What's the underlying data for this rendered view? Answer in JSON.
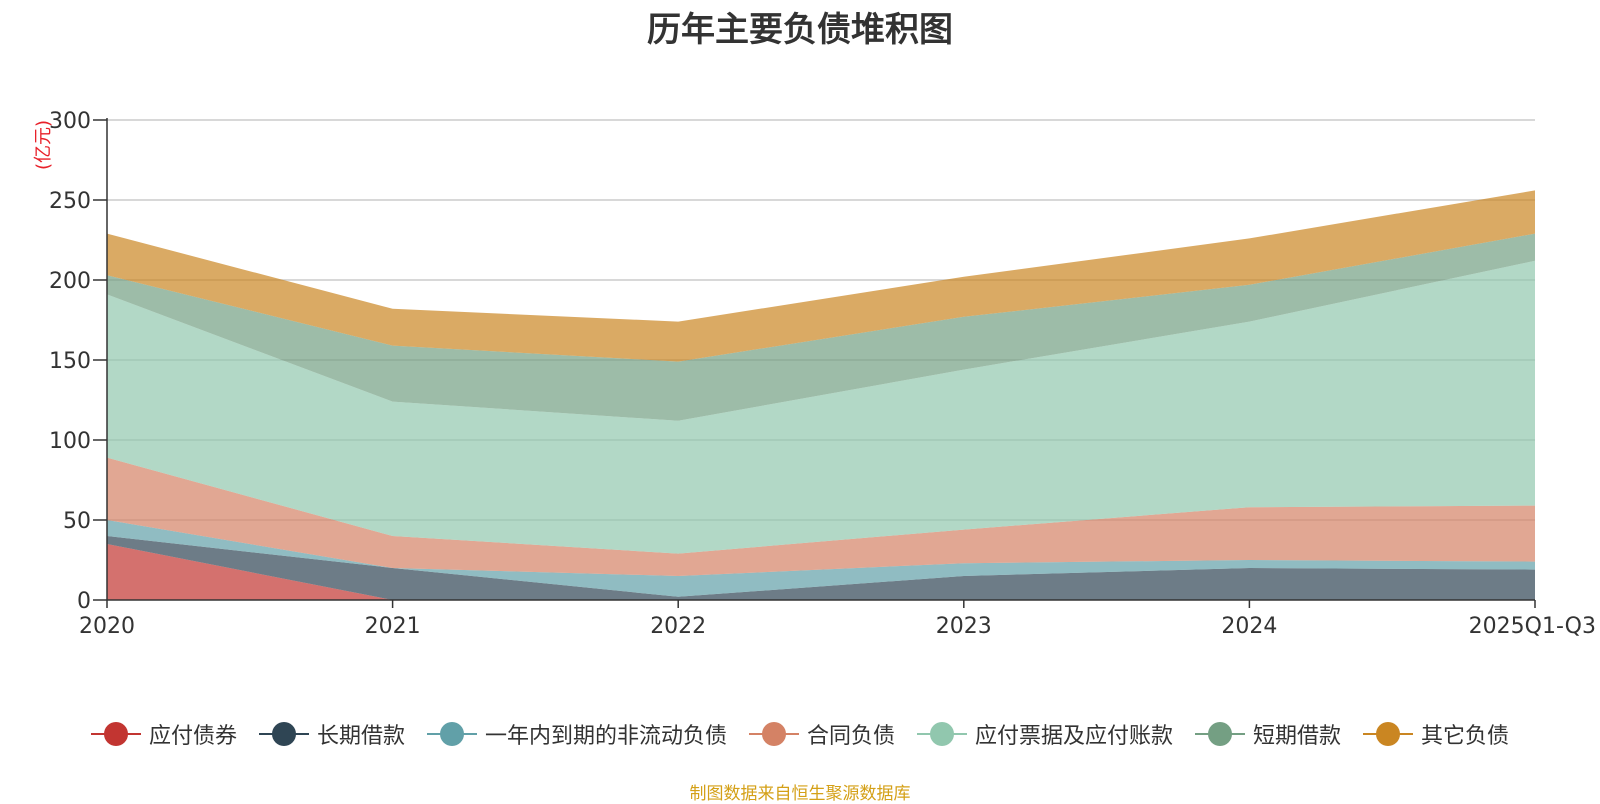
{
  "chart_data": {
    "type": "area",
    "stacked": true,
    "title": "历年主要负债堆积图",
    "ylabel": "(亿元)",
    "xlabel": "",
    "categories": [
      "2020",
      "2021",
      "2022",
      "2023",
      "2024",
      "2025Q1-Q3"
    ],
    "ylim": [
      0,
      300
    ],
    "yticks": [
      0,
      50,
      100,
      150,
      200,
      250,
      300
    ],
    "grid": true,
    "legend_position": "bottom",
    "series": [
      {
        "name": "应付债券",
        "values": [
          35,
          0,
          0,
          0,
          0,
          0
        ],
        "color": "#c23531"
      },
      {
        "name": "长期借款",
        "values": [
          5,
          20,
          2,
          15,
          20,
          19
        ],
        "color": "#2f4554"
      },
      {
        "name": "一年内到期的非流动负债",
        "values": [
          10,
          0,
          13,
          8,
          5,
          5
        ],
        "color": "#61a0a8"
      },
      {
        "name": "合同负债",
        "values": [
          39,
          20,
          14,
          21,
          33,
          35
        ],
        "color": "#d48265"
      },
      {
        "name": "应付票据及应付账款",
        "values": [
          102,
          84,
          83,
          100,
          116,
          153
        ],
        "color": "#91c7ae"
      },
      {
        "name": "短期借款",
        "values": [
          12,
          35,
          37,
          33,
          23,
          17
        ],
        "color": "#749f83"
      },
      {
        "name": "其它负债",
        "values": [
          26,
          23,
          25,
          25,
          29,
          27
        ],
        "color": "#ca8622"
      }
    ]
  },
  "source_note": "制图数据来自恒生聚源数据库"
}
